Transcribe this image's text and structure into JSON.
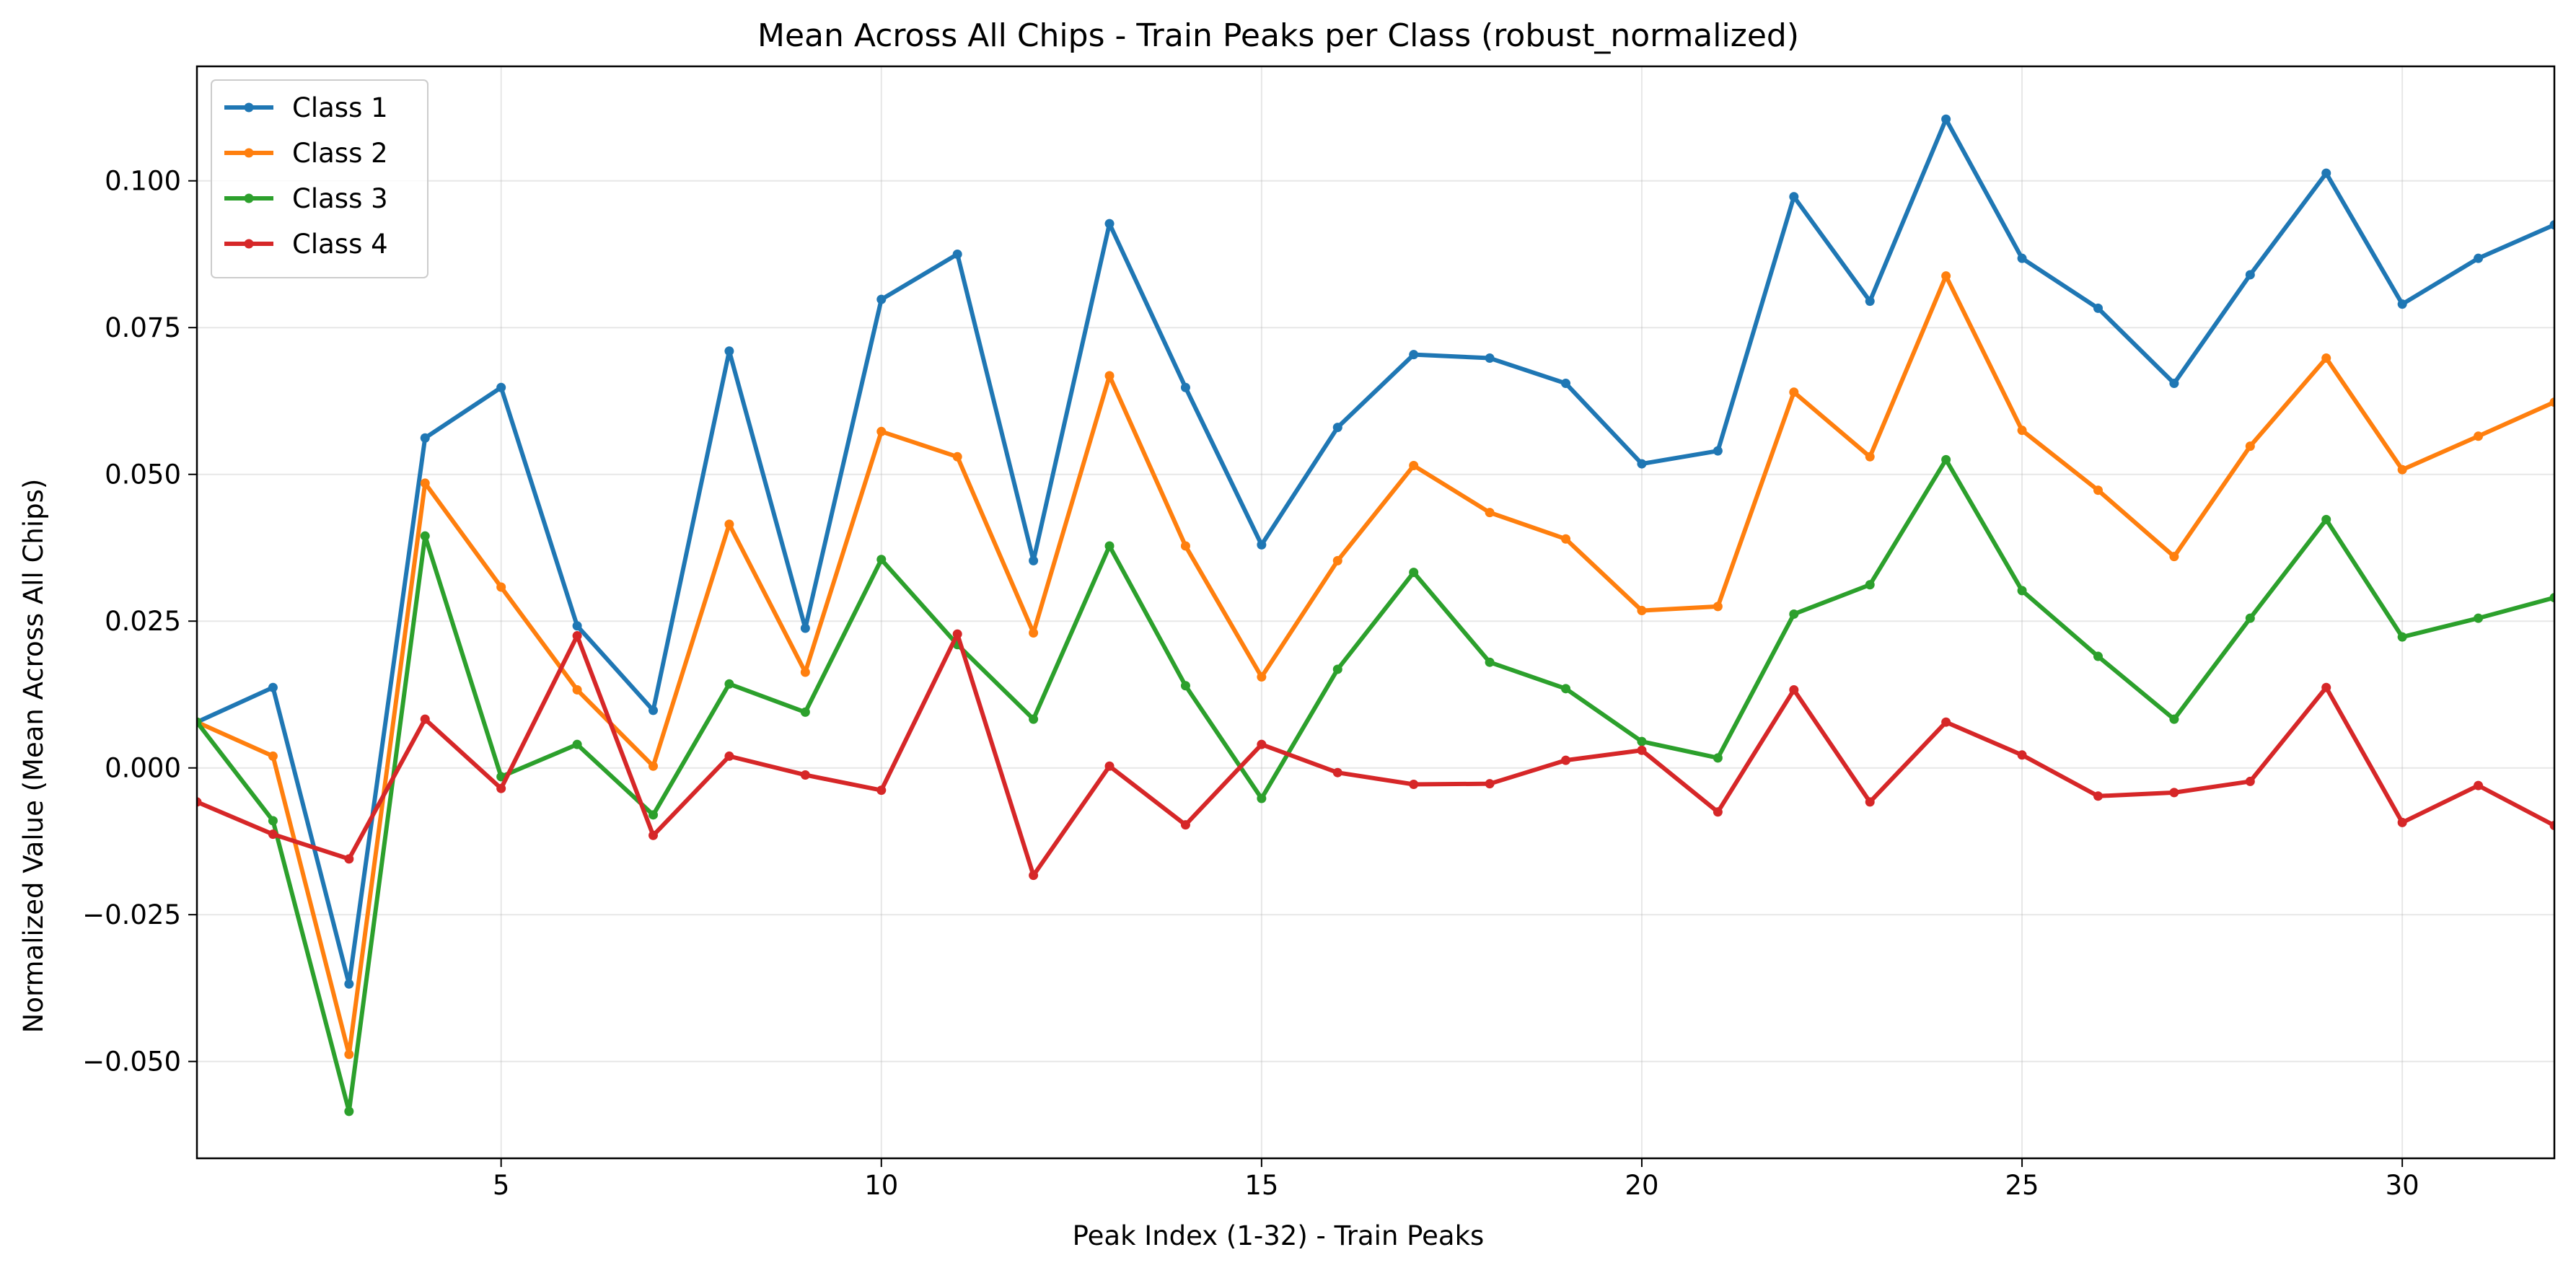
{
  "chart_data": {
    "type": "line",
    "title": "Mean Across All Chips - Train Peaks per Class (robust_normalized)",
    "xlabel": "Peak Index (1-32) - Train Peaks",
    "ylabel": "Normalized Value (Mean Across All Chips)",
    "xlim": [
      1,
      32
    ],
    "ylim": [
      -0.0665,
      0.1195
    ],
    "xticks": [
      5,
      10,
      15,
      20,
      25,
      30
    ],
    "xtick_labels": [
      "5",
      "10",
      "15",
      "20",
      "25",
      "30"
    ],
    "yticks": [
      -0.05,
      -0.025,
      0.0,
      0.025,
      0.05,
      0.075,
      0.1
    ],
    "ytick_labels": [
      "−0.050",
      "−0.025",
      "0.000",
      "0.025",
      "0.050",
      "0.075",
      "0.100"
    ],
    "grid": true,
    "legend_position": "top-left",
    "x": [
      1,
      2,
      3,
      4,
      5,
      6,
      7,
      8,
      9,
      10,
      11,
      12,
      13,
      14,
      15,
      16,
      17,
      18,
      19,
      20,
      21,
      22,
      23,
      24,
      25,
      26,
      27,
      28,
      29,
      30,
      31,
      32
    ],
    "series": [
      {
        "name": "Class 1",
        "color": "#1f77b4",
        "values": [
          0.0078,
          0.0137,
          -0.0368,
          0.0562,
          0.0648,
          0.0242,
          0.0098,
          0.071,
          0.0238,
          0.0798,
          0.0875,
          0.0353,
          0.0927,
          0.0648,
          0.038,
          0.058,
          0.0704,
          0.0698,
          0.0655,
          0.0518,
          0.054,
          0.0973,
          0.0795,
          0.1105,
          0.0868,
          0.0783,
          0.0655,
          0.084,
          0.1013,
          0.079,
          0.0868,
          0.0925
        ]
      },
      {
        "name": "Class 2",
        "color": "#ff7f0e",
        "values": [
          0.0078,
          0.002,
          -0.0488,
          0.0485,
          0.0308,
          0.0133,
          0.0003,
          0.0415,
          0.0163,
          0.0573,
          0.053,
          0.023,
          0.0668,
          0.0378,
          0.0155,
          0.0353,
          0.0515,
          0.0435,
          0.039,
          0.0268,
          0.0275,
          0.064,
          0.053,
          0.0838,
          0.0575,
          0.0473,
          0.036,
          0.0548,
          0.0698,
          0.0508,
          0.0565,
          0.0623
        ]
      },
      {
        "name": "Class 3",
        "color": "#2ca02c",
        "values": [
          0.0078,
          -0.009,
          -0.0585,
          0.0395,
          -0.0015,
          0.004,
          -0.008,
          0.0143,
          0.0095,
          0.0355,
          0.021,
          0.0083,
          0.0378,
          0.014,
          -0.0052,
          0.0168,
          0.0333,
          0.018,
          0.0135,
          0.0045,
          0.0017,
          0.0262,
          0.0312,
          0.0525,
          0.0302,
          0.019,
          0.0083,
          0.0255,
          0.0423,
          0.0223,
          0.0255,
          0.029
        ]
      },
      {
        "name": "Class 4",
        "color": "#d62728",
        "values": [
          -0.0058,
          -0.0113,
          -0.0155,
          0.0083,
          -0.0035,
          0.0225,
          -0.0115,
          0.002,
          -0.0012,
          -0.0038,
          0.0228,
          -0.0183,
          0.0003,
          -0.0097,
          0.004,
          -0.0008,
          -0.0028,
          -0.0027,
          0.0013,
          0.003,
          -0.0075,
          0.0133,
          -0.0058,
          0.0078,
          0.0022,
          -0.0048,
          -0.0042,
          -0.0023,
          0.0137,
          -0.0093,
          -0.003,
          -0.0098
        ]
      }
    ]
  }
}
